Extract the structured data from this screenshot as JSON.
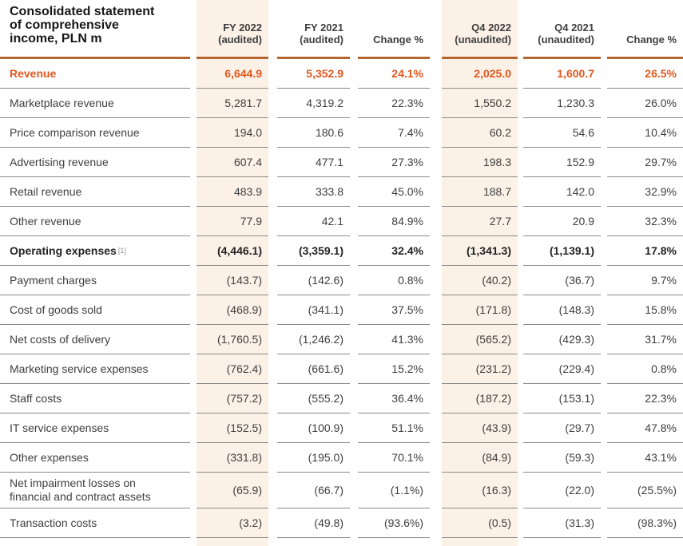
{
  "table": {
    "title": "Consolidated statement of comprehensive income, PLN m",
    "title_lines": [
      "Consolidated statement",
      "of comprehensive",
      "income, PLN m"
    ],
    "columns": [
      {
        "label": "FY 2022",
        "sublabel": "(audited)",
        "highlight": true
      },
      {
        "label": "FY 2021",
        "sublabel": "(audited)",
        "highlight": false
      },
      {
        "label": "Change %",
        "sublabel": "",
        "highlight": false
      },
      {
        "label": "Q4 2022",
        "sublabel": "(unaudited)",
        "highlight": true
      },
      {
        "label": "Q4 2021",
        "sublabel": "(unaudited)",
        "highlight": false
      },
      {
        "label": "Change %",
        "sublabel": "",
        "highlight": false
      }
    ],
    "rows": [
      {
        "label": "Revenue",
        "style": "revenue",
        "values": [
          "6,644.9",
          "5,352.9",
          "24.1%",
          "2,025.0",
          "1,600.7",
          "26.5%"
        ]
      },
      {
        "label": "Marketplace revenue",
        "style": "",
        "values": [
          "5,281.7",
          "4,319.2",
          "22.3%",
          "1,550.2",
          "1,230.3",
          "26.0%"
        ]
      },
      {
        "label": "Price comparison revenue",
        "style": "",
        "values": [
          "194.0",
          "180.6",
          "7.4%",
          "60.2",
          "54.6",
          "10.4%"
        ]
      },
      {
        "label": "Advertising revenue",
        "style": "",
        "values": [
          "607.4",
          "477.1",
          "27.3%",
          "198.3",
          "152.9",
          "29.7%"
        ]
      },
      {
        "label": "Retail revenue",
        "style": "",
        "values": [
          "483.9",
          "333.8",
          "45.0%",
          "188.7",
          "142.0",
          "32.9%"
        ]
      },
      {
        "label": "Other revenue",
        "style": "",
        "values": [
          "77.9",
          "42.1",
          "84.9%",
          "27.7",
          "20.9",
          "32.3%"
        ]
      },
      {
        "label": "Operating expenses",
        "footnote": "[1]",
        "style": "bold",
        "values": [
          "(4,446.1)",
          "(3,359.1)",
          "32.4%",
          "(1,341.3)",
          "(1,139.1)",
          "17.8%"
        ]
      },
      {
        "label": "Payment charges",
        "style": "",
        "values": [
          "(143.7)",
          "(142.6)",
          "0.8%",
          "(40.2)",
          "(36.7)",
          "9.7%"
        ]
      },
      {
        "label": "Cost of goods sold",
        "style": "",
        "values": [
          "(468.9)",
          "(341.1)",
          "37.5%",
          "(171.8)",
          "(148.3)",
          "15.8%"
        ]
      },
      {
        "label": "Net costs of delivery",
        "style": "",
        "values": [
          "(1,760.5)",
          "(1,246.2)",
          "41.3%",
          "(565.2)",
          "(429.3)",
          "31.7%"
        ]
      },
      {
        "label": "Marketing service expenses",
        "style": "",
        "values": [
          "(762.4)",
          "(661.6)",
          "15.2%",
          "(231.2)",
          "(229.4)",
          "0.8%"
        ]
      },
      {
        "label": "Staff costs",
        "style": "",
        "values": [
          "(757.2)",
          "(555.2)",
          "36.4%",
          "(187.2)",
          "(153.1)",
          "22.3%"
        ]
      },
      {
        "label": "IT service expenses",
        "style": "",
        "values": [
          "(152.5)",
          "(100.9)",
          "51.1%",
          "(43.9)",
          "(29.7)",
          "47.8%"
        ]
      },
      {
        "label": "Other expenses",
        "style": "",
        "values": [
          "(331.8)",
          "(195.0)",
          "70.1%",
          "(84.9)",
          "(59.3)",
          "43.1%"
        ]
      },
      {
        "label": "Net impairment losses on financial and contract assets",
        "style": "",
        "values": [
          "(65.9)",
          "(66.7)",
          "(1.1%)",
          "(16.3)",
          "(22.0)",
          "(25.5%)"
        ]
      },
      {
        "label": "Transaction costs",
        "style": "",
        "values": [
          "(3.2)",
          "(49.8)",
          "(93.6%)",
          "(0.5)",
          "(31.3)",
          "(98.3%)"
        ]
      }
    ],
    "colors": {
      "accent": "#b5662e",
      "revenue": "#e2571e",
      "highlight_bg": "#fcf1e6",
      "line": "#8a8a8a",
      "text": "#3e3e3e",
      "bold_text": "#232323",
      "title_text": "#171717",
      "header_text": "#3e3e3e",
      "footnote": "#8f8f8f"
    }
  }
}
